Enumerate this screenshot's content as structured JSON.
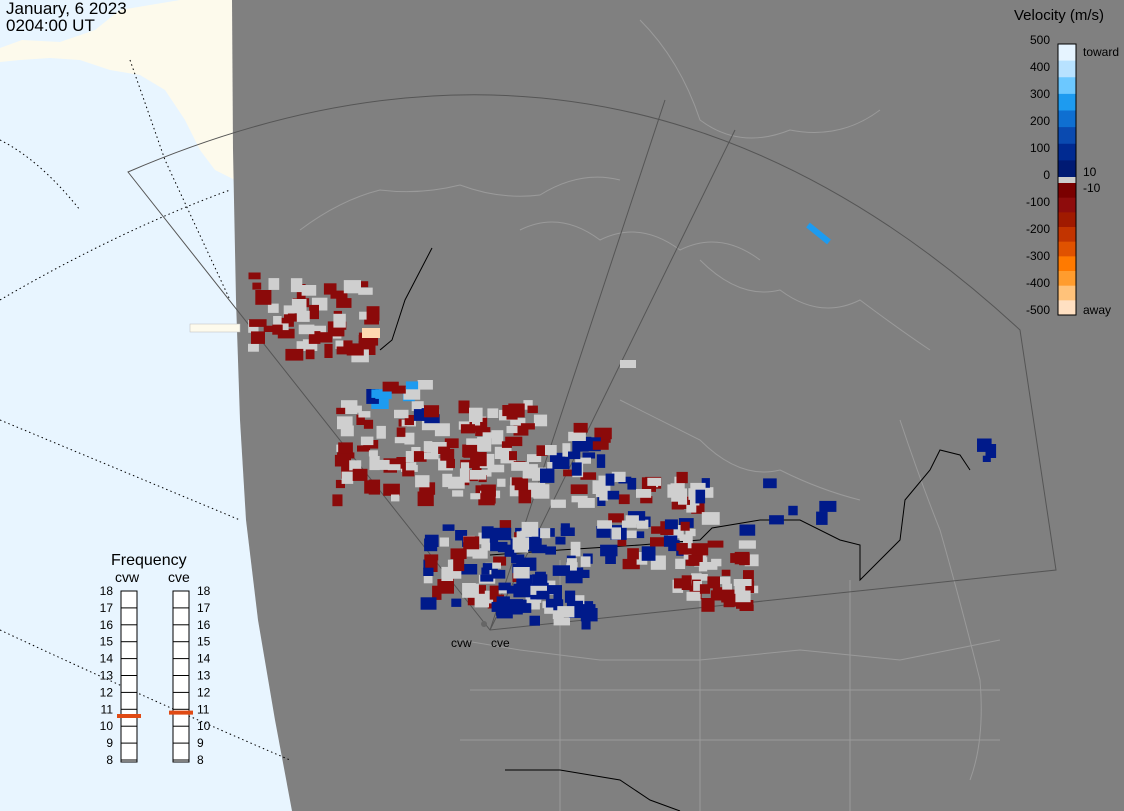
{
  "header": {
    "date": "January, 6 2023",
    "time": "0204:00 UT"
  },
  "legend": {
    "title": "Velocity (m/s)",
    "ticks": [
      "500",
      "400",
      "300",
      "200",
      "100",
      "0",
      "-100",
      "-200",
      "-300",
      "-400",
      "-500"
    ],
    "near_zero_labels": [
      "10",
      "-10"
    ],
    "toward_label": "toward",
    "away_label": "away",
    "colors": {
      "toward": [
        "#e6f4ff",
        "#b8e2ff",
        "#6cc8ff",
        "#1d9bf0",
        "#0f6fd1",
        "#0a4ab0",
        "#002a91",
        "#001a73"
      ],
      "gray": "#cccccc",
      "away": [
        "#7a0000",
        "#8e0c0c",
        "#a01a00",
        "#c23400",
        "#e05200",
        "#ff7a00",
        "#ff9c2e",
        "#ffc27a",
        "#ffe0c2"
      ]
    }
  },
  "stations": [
    "cvw",
    "cve"
  ],
  "frequency": {
    "title": "Frequency",
    "columns": [
      "cvw",
      "cve"
    ],
    "levels": [
      "18",
      "17",
      "16",
      "15",
      "14",
      "13",
      "12",
      "11",
      "10",
      "9",
      "8"
    ],
    "markers_mhz": {
      "cvw": 10.6,
      "cve": 10.8
    },
    "marker_color": "#e04a14"
  },
  "map": {
    "ocean_color": "#e8f5ff",
    "land_color": "#fdfaec",
    "shade_color": "#808080",
    "line_color": "#9a9a9a"
  }
}
